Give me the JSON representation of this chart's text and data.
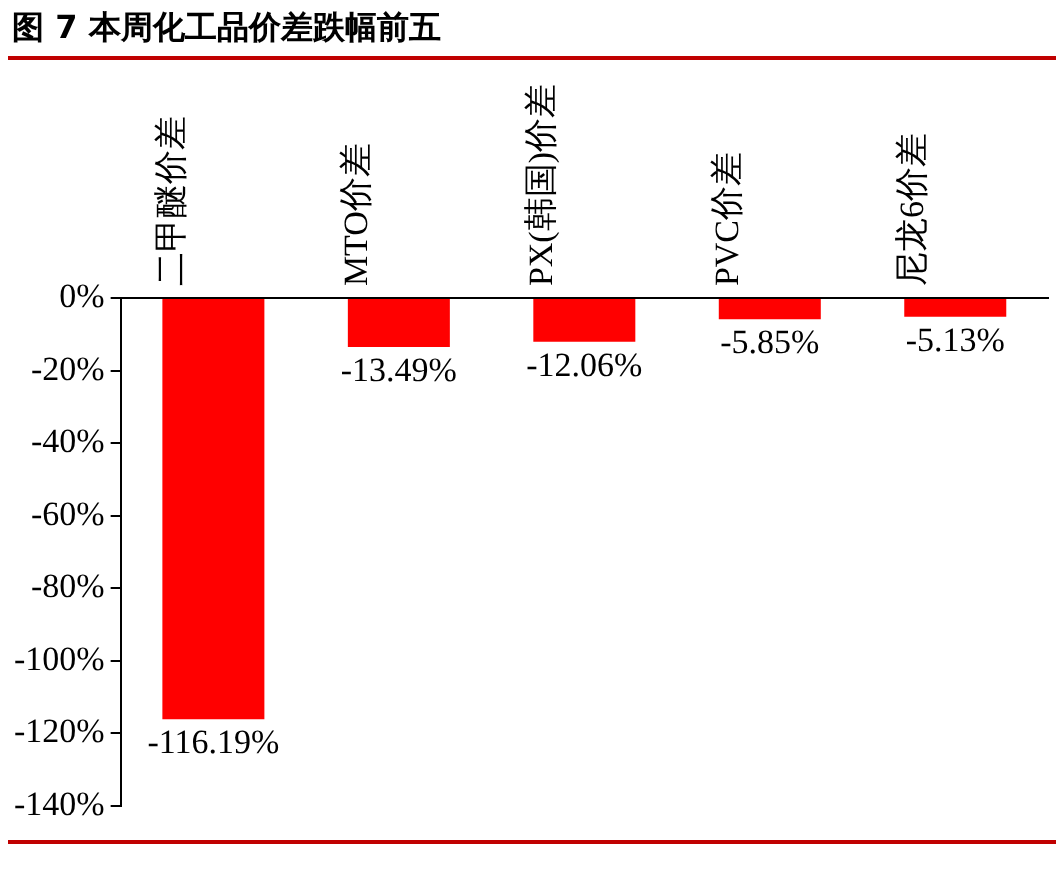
{
  "chart_data": {
    "type": "bar",
    "title": "图 7 本周化工品价差跌幅前五",
    "categories": [
      "二甲醚价差",
      "MTO价差",
      "PX(韩国)价差",
      "PVC价差",
      "尼龙6价差"
    ],
    "values": [
      -116.19,
      -13.49,
      -12.06,
      -5.85,
      -5.13
    ],
    "value_labels": [
      "-116.19%",
      "-13.49%",
      "-12.06%",
      "-5.85%",
      "-5.13%"
    ],
    "color": "#ff0000",
    "ylim": [
      -140,
      0
    ],
    "yticks": [
      {
        "value": 0,
        "label": "0%"
      },
      {
        "value": -20,
        "label": "-20%"
      },
      {
        "value": -40,
        "label": "-40%"
      },
      {
        "value": -60,
        "label": "-60%"
      },
      {
        "value": -80,
        "label": "-80%"
      },
      {
        "value": -100,
        "label": "-100%"
      },
      {
        "value": -120,
        "label": "-120%"
      },
      {
        "value": -140,
        "label": "-140%"
      }
    ],
    "grid": false,
    "legend": false
  }
}
